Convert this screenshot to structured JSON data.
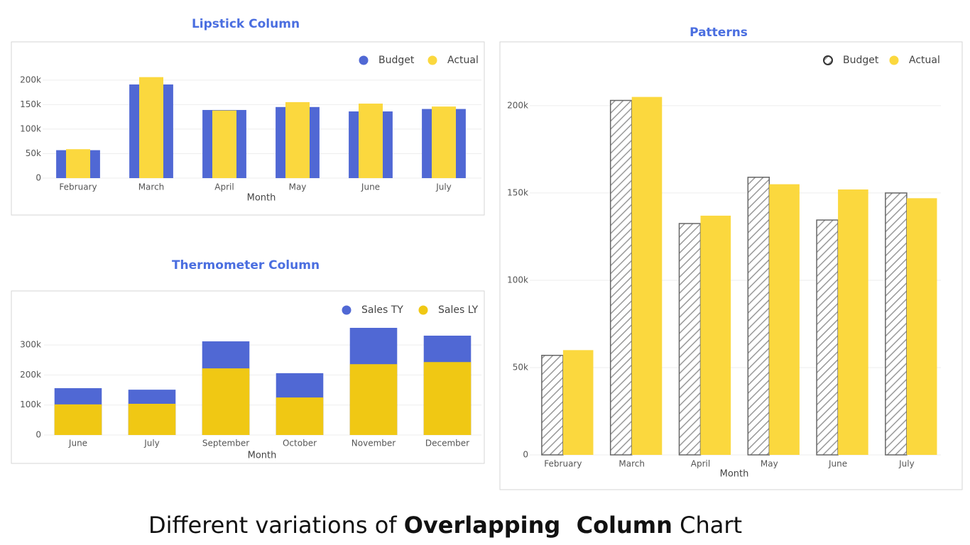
{
  "chart_data": [
    {
      "type": "lipstick",
      "title": "Lipstick Column",
      "x_label": "Month",
      "categories": [
        "February",
        "March",
        "April",
        "May",
        "June",
        "July"
      ],
      "series": [
        {
          "name": "Budget",
          "color": "#5068d4",
          "values": [
            57000,
            191000,
            139000,
            145000,
            136000,
            141000
          ]
        },
        {
          "name": "Actual",
          "color": "#fbd83e",
          "values": [
            59000,
            206000,
            138000,
            155000,
            152000,
            146000
          ]
        }
      ],
      "ylim": [
        0,
        220000
      ],
      "yticks": [
        0,
        {
          "value": 50000,
          "label": "50k"
        },
        {
          "value": 100000,
          "label": "100k"
        },
        {
          "value": 150000,
          "label": "150k"
        },
        {
          "value": 200000,
          "label": "200k"
        }
      ],
      "grid": true,
      "legend": "top-right"
    },
    {
      "type": "thermometer",
      "title": "Thermometer Column",
      "x_label": "Month",
      "categories": [
        "June",
        "July",
        "September",
        "October",
        "November",
        "December"
      ],
      "series": [
        {
          "name": "Sales TY",
          "color": "#5068d4",
          "values": [
            156000,
            151000,
            312000,
            206000,
            357000,
            331000
          ]
        },
        {
          "name": "Sales LY",
          "color": "#f0c814",
          "values": [
            102000,
            104000,
            222000,
            125000,
            236000,
            243000
          ]
        }
      ],
      "ylim": [
        0,
        370000
      ],
      "yticks": [
        0,
        {
          "value": 100000,
          "label": "100k"
        },
        {
          "value": 200000,
          "label": "200k"
        },
        {
          "value": 300000,
          "label": "300k"
        }
      ],
      "grid": true,
      "legend": "top-right"
    },
    {
      "type": "pattern",
      "title": "Patterns",
      "x_label": "Month",
      "categories": [
        "February",
        "March",
        "April",
        "May",
        "June",
        "July"
      ],
      "series": [
        {
          "name": "Budget",
          "color": "#666666",
          "pattern": "hatch",
          "values": [
            57000,
            203000,
            132500,
            159000,
            134500,
            150000
          ]
        },
        {
          "name": "Actual",
          "color": "#fbd83e",
          "values": [
            60000,
            205000,
            137000,
            155000,
            152000,
            147000
          ]
        }
      ],
      "ylim": [
        0,
        215000
      ],
      "yticks": [
        0,
        {
          "value": 50000,
          "label": "50k"
        },
        {
          "value": 100000,
          "label": "100k"
        },
        {
          "value": 150000,
          "label": "150k"
        },
        {
          "value": 200000,
          "label": "200k"
        }
      ],
      "grid": true,
      "legend": "top-right"
    }
  ],
  "caption": {
    "before": "Different variations of ",
    "bold": "Overlapping  Column",
    "after": " Chart"
  }
}
